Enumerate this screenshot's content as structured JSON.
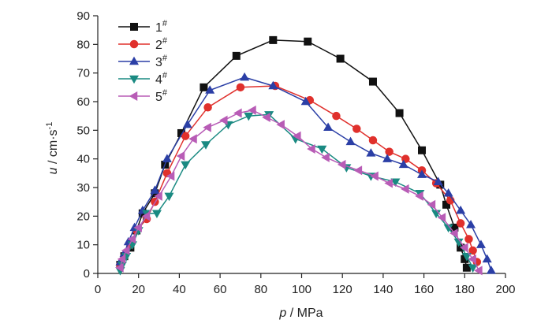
{
  "chart_data": {
    "type": "line",
    "xlabel_var": "p",
    "xlabel_unit": "MPa",
    "ylabel_var": "u",
    "ylabel_unit_main": "cm·s",
    "ylabel_unit_sup": "-1",
    "xlim": [
      0,
      200
    ],
    "ylim": [
      0,
      90
    ],
    "xticks": [
      0,
      20,
      40,
      60,
      80,
      100,
      120,
      140,
      160,
      180,
      200
    ],
    "yticks": [
      0,
      10,
      20,
      30,
      40,
      50,
      60,
      70,
      80,
      90
    ],
    "grid": false,
    "legend_position": "top-left",
    "series": [
      {
        "name": "1",
        "name_sup": "#",
        "color": "#111111",
        "marker": "square",
        "x": [
          11,
          13,
          16,
          19,
          22,
          28,
          33,
          41,
          52,
          68,
          86,
          103,
          119,
          135,
          148,
          159,
          168,
          171,
          175,
          178,
          180,
          181
        ],
        "y": [
          3,
          6,
          9,
          15,
          21,
          28,
          38,
          49,
          65,
          76,
          81.5,
          81,
          75,
          67,
          56,
          43,
          31,
          24,
          16,
          9,
          5,
          2
        ]
      },
      {
        "name": "2",
        "name_sup": "#",
        "color": "#e0302c",
        "marker": "circle",
        "x": [
          11,
          13,
          16,
          19,
          24,
          28,
          34,
          43,
          54,
          70,
          87,
          104,
          117,
          127,
          135,
          143,
          151,
          159,
          166,
          173,
          178,
          182,
          184,
          186
        ],
        "y": [
          3,
          6,
          10,
          15,
          19,
          25,
          35,
          48,
          58,
          65,
          65.5,
          60.5,
          55,
          50.5,
          46.5,
          42.5,
          40,
          36,
          31.5,
          25.5,
          17.5,
          12,
          8,
          4
        ]
      },
      {
        "name": "3",
        "name_sup": "#",
        "color": "#2b3fa6",
        "marker": "triangle-up",
        "x": [
          11,
          13,
          15,
          18,
          22,
          28,
          34,
          44,
          55,
          72,
          86,
          102,
          113,
          124,
          134,
          142,
          150,
          159,
          167,
          172,
          178,
          183,
          188,
          191,
          193
        ],
        "y": [
          4,
          7,
          11,
          16,
          22,
          29,
          40,
          52,
          64,
          68.5,
          65.5,
          60,
          51,
          46,
          42,
          40,
          38,
          34.5,
          32,
          28,
          22,
          17,
          10,
          5,
          1
        ]
      },
      {
        "name": "4",
        "name_sup": "#",
        "color": "#1a8a82",
        "marker": "triangle-down",
        "x": [
          11,
          12,
          14,
          17,
          20,
          24,
          29,
          35,
          43,
          53,
          64,
          74,
          84,
          97,
          110,
          122,
          134,
          146,
          158,
          166,
          172,
          177,
          181,
          184
        ],
        "y": [
          1,
          3,
          6,
          10,
          15,
          21,
          21,
          27,
          38,
          45,
          52,
          55,
          55.5,
          47,
          43.5,
          37,
          34,
          32,
          28,
          21,
          16,
          11,
          6,
          2
        ]
      },
      {
        "name": "5",
        "name_sup": "#",
        "color": "#b85cb6",
        "marker": "triangle-left",
        "x": [
          11,
          12,
          14,
          17,
          20,
          24,
          30,
          36,
          41,
          47,
          54,
          62,
          69,
          76,
          83,
          90,
          98,
          105,
          112,
          120,
          128,
          136,
          143,
          151,
          158,
          164,
          169,
          175,
          180,
          184,
          187
        ],
        "y": [
          2,
          5,
          8,
          12,
          16,
          20,
          27,
          34,
          41,
          47,
          51,
          53.5,
          56,
          57,
          54.5,
          52,
          48,
          43.5,
          40.5,
          38,
          36,
          34,
          31.5,
          29.5,
          27,
          24,
          19.5,
          14,
          9,
          5,
          1
        ]
      }
    ]
  }
}
